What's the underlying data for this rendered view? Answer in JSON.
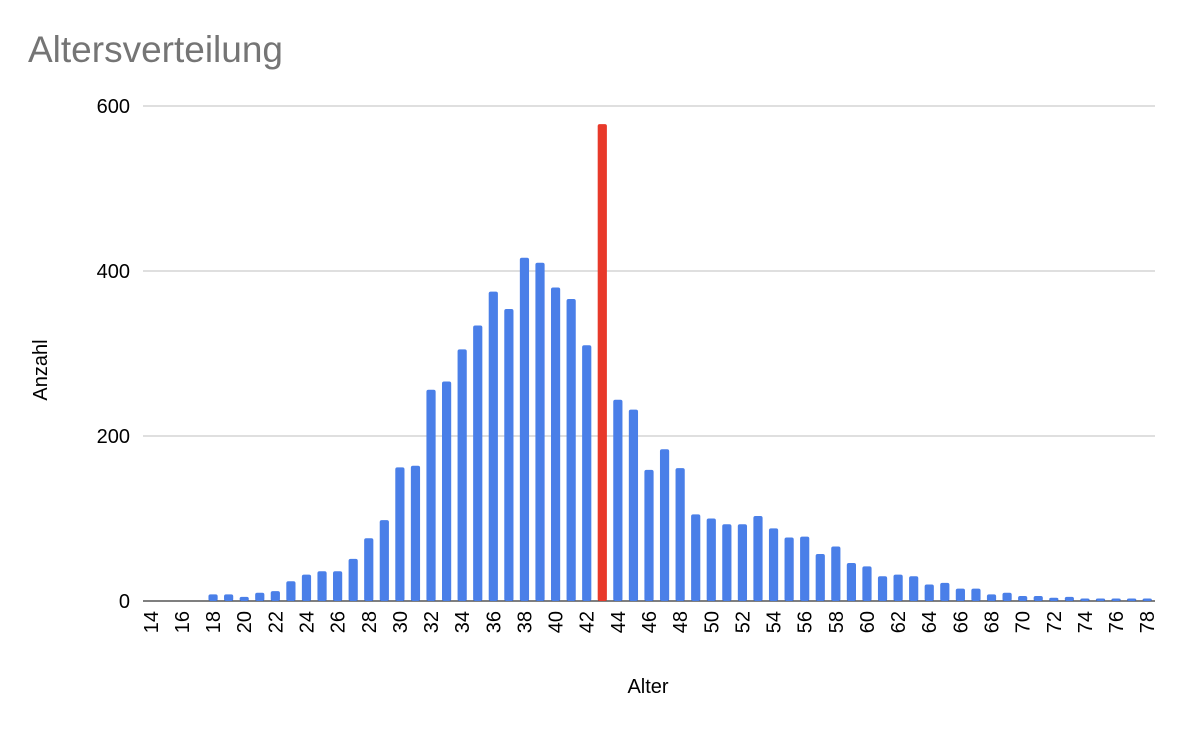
{
  "chart_data": {
    "type": "bar",
    "title": "Altersverteilung",
    "x_label": "Alter",
    "y_label": "Anzahl",
    "categories": [
      "14",
      null,
      "16",
      null,
      "18",
      null,
      "20",
      null,
      "22",
      null,
      "24",
      null,
      "26",
      null,
      "28",
      null,
      "30",
      null,
      "32",
      null,
      "34",
      null,
      "36",
      null,
      "38",
      null,
      "40",
      null,
      "42",
      null,
      "44",
      null,
      "46",
      null,
      "48",
      null,
      "50",
      null,
      "52",
      null,
      "54",
      null,
      "56",
      null,
      "58",
      null,
      "60",
      null,
      "62",
      null,
      "64",
      null,
      "66",
      null,
      "68",
      null,
      "70",
      null,
      "72",
      null,
      "74",
      null,
      "76",
      null,
      "78"
    ],
    "values": [
      0,
      0,
      0,
      0,
      8,
      8,
      5,
      10,
      12,
      24,
      32,
      36,
      36,
      51,
      76,
      98,
      162,
      164,
      256,
      266,
      305,
      334,
      375,
      354,
      416,
      410,
      380,
      366,
      310,
      578,
      244,
      232,
      159,
      184,
      161,
      105,
      100,
      93,
      93,
      103,
      88,
      77,
      78,
      57,
      66,
      46,
      42,
      30,
      32,
      30,
      20,
      22,
      15,
      15,
      8,
      10,
      6,
      6,
      4,
      5,
      3,
      3,
      3,
      3,
      3
    ],
    "colors": [
      "#4a7fe8",
      "#4a7fe8",
      "#4a7fe8",
      "#4a7fe8",
      "#4a7fe8",
      "#4a7fe8",
      "#4a7fe8",
      "#4a7fe8",
      "#4a7fe8",
      "#4a7fe8",
      "#4a7fe8",
      "#4a7fe8",
      "#4a7fe8",
      "#4a7fe8",
      "#4a7fe8",
      "#4a7fe8",
      "#4a7fe8",
      "#4a7fe8",
      "#4a7fe8",
      "#4a7fe8",
      "#4a7fe8",
      "#4a7fe8",
      "#4a7fe8",
      "#4a7fe8",
      "#4a7fe8",
      "#4a7fe8",
      "#4a7fe8",
      "#4a7fe8",
      "#4a7fe8",
      "#e8392a",
      "#4a7fe8",
      "#4a7fe8",
      "#4a7fe8",
      "#4a7fe8",
      "#4a7fe8",
      "#4a7fe8",
      "#4a7fe8",
      "#4a7fe8",
      "#4a7fe8",
      "#4a7fe8",
      "#4a7fe8",
      "#4a7fe8",
      "#4a7fe8",
      "#4a7fe8",
      "#4a7fe8",
      "#4a7fe8",
      "#4a7fe8",
      "#4a7fe8",
      "#4a7fe8",
      "#4a7fe8",
      "#4a7fe8",
      "#4a7fe8",
      "#4a7fe8",
      "#4a7fe8",
      "#4a7fe8",
      "#4a7fe8",
      "#4a7fe8",
      "#4a7fe8",
      "#4a7fe8",
      "#4a7fe8",
      "#4a7fe8",
      "#4a7fe8",
      "#4a7fe8",
      "#4a7fe8",
      "#4a7fe8"
    ],
    "ylim": [
      0,
      600
    ],
    "yticks": [
      0,
      200,
      400,
      600
    ],
    "grid": true
  }
}
